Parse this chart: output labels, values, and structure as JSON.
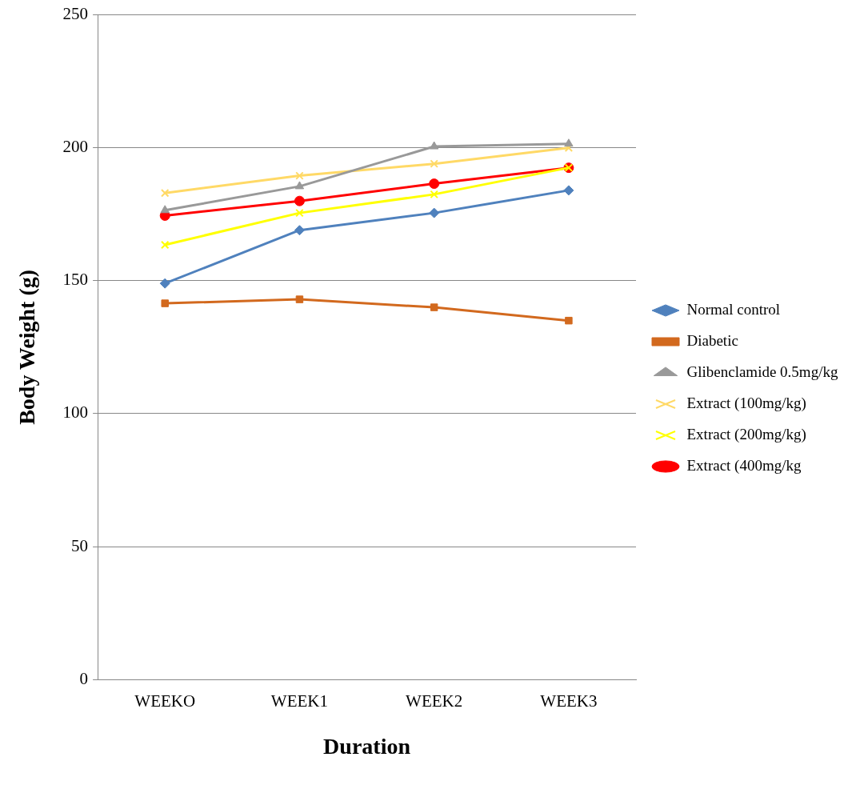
{
  "chart_data": {
    "type": "line",
    "xlabel": "Duration",
    "ylabel": "Body Weight (g)",
    "categories": [
      "WEEKO",
      "WEEK1",
      "WEEK2",
      "WEEK3"
    ],
    "ylim": [
      0,
      250
    ],
    "yticks": [
      0,
      50,
      100,
      150,
      200,
      250
    ],
    "grid": "y",
    "legend": "right",
    "line_style": "solid",
    "series": [
      {
        "name": "Normal control",
        "color": "#4f81bd",
        "marker": "diamond",
        "values": [
          149,
          169,
          175.5,
          184
        ]
      },
      {
        "name": "Diabetic",
        "color": "#d2691e",
        "marker": "square",
        "values": [
          141.5,
          143,
          140,
          135
        ]
      },
      {
        "name": "Glibenclamide 0.5mg/kg",
        "color": "#999999",
        "marker": "triangle",
        "values": [
          176.5,
          185.5,
          200.5,
          201.5
        ]
      },
      {
        "name": "Extract (100mg/kg)",
        "color": "#ffd966",
        "marker": "cross",
        "values": [
          183,
          189.5,
          194,
          200
        ]
      },
      {
        "name": "Extract (200mg/kg)",
        "color": "#ffff00",
        "marker": "cross",
        "values": [
          163.5,
          175.5,
          182.5,
          192.5
        ]
      },
      {
        "name": "Extract (400mg/kg",
        "color": "#ff0000",
        "marker": "circle",
        "values": [
          174.5,
          180,
          186.5,
          192.5
        ]
      }
    ]
  }
}
